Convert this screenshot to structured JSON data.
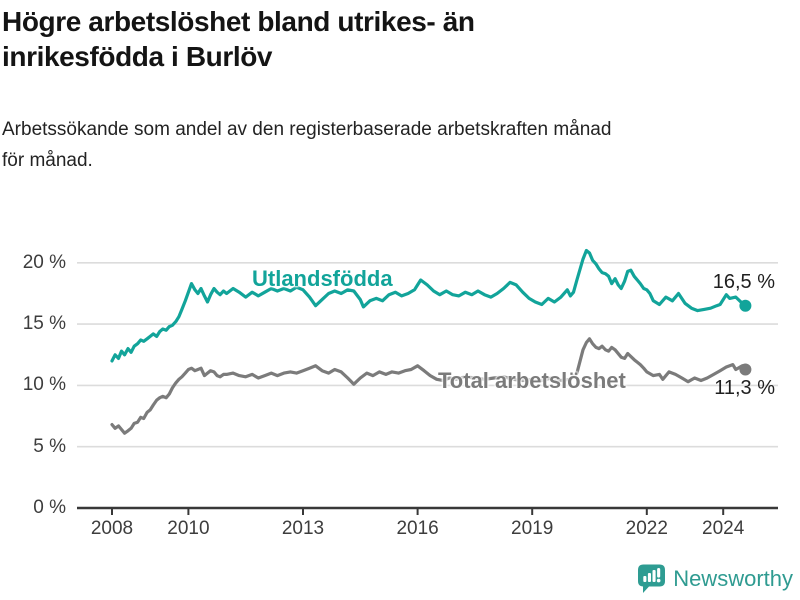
{
  "header": {
    "title_lines": [
      "Högre arbetslöshet bland utrikes- än",
      "inrikesfödda i Burlöv"
    ],
    "subtitle_lines": [
      "Arbetssökande som andel av den registerbaserade arbetskraften månad",
      "för månad."
    ]
  },
  "footer": {
    "brand": "Newsworthy",
    "logo_icon": "bar-chart-speech-bubble-icon",
    "brand_color": "#2F9B91"
  },
  "chart_data": {
    "type": "line",
    "title": "Högre arbetslöshet bland utrikes- än inrikesfödda i Burlöv",
    "subtitle": "Arbetssökande som andel av den registerbaserade arbetskraften månad för månad.",
    "xlabel": "",
    "ylabel": "",
    "grid": true,
    "legend_position": "inline-labels",
    "style": {
      "grid_color": "#dcdcdc",
      "axis_color": "#383838",
      "tick_label_color": "#3d3d3d",
      "value_label_color": "#1f1f1f"
    },
    "x_axis": {
      "unit": "year",
      "ticks": [
        2008,
        2010,
        2013,
        2016,
        2019,
        2022,
        2024
      ]
    },
    "y_axis": {
      "ylim": [
        0,
        22
      ],
      "ticks": [
        {
          "value": 0,
          "label": "0 %"
        },
        {
          "value": 5,
          "label": "5 %"
        },
        {
          "value": 10,
          "label": "10 %"
        },
        {
          "value": 15,
          "label": "15 %"
        },
        {
          "value": 20,
          "label": "20 %"
        }
      ]
    },
    "series": [
      {
        "name": "Utlandsfödda",
        "color": "#12A49A",
        "end_label": "16,5 %",
        "end_value": 16.5,
        "points": [
          [
            2008.0,
            12.0
          ],
          [
            2008.08,
            12.5
          ],
          [
            2008.17,
            12.2
          ],
          [
            2008.25,
            12.8
          ],
          [
            2008.33,
            12.5
          ],
          [
            2008.42,
            13.0
          ],
          [
            2008.5,
            12.7
          ],
          [
            2008.58,
            13.2
          ],
          [
            2008.67,
            13.4
          ],
          [
            2008.75,
            13.7
          ],
          [
            2008.83,
            13.6
          ],
          [
            2008.92,
            13.8
          ],
          [
            2009.0,
            14.0
          ],
          [
            2009.08,
            14.2
          ],
          [
            2009.17,
            14.0
          ],
          [
            2009.25,
            14.4
          ],
          [
            2009.33,
            14.6
          ],
          [
            2009.42,
            14.5
          ],
          [
            2009.5,
            14.8
          ],
          [
            2009.58,
            14.9
          ],
          [
            2009.67,
            15.2
          ],
          [
            2009.75,
            15.6
          ],
          [
            2009.83,
            16.2
          ],
          [
            2009.92,
            16.9
          ],
          [
            2010.0,
            17.6
          ],
          [
            2010.08,
            18.3
          ],
          [
            2010.17,
            17.8
          ],
          [
            2010.25,
            17.5
          ],
          [
            2010.33,
            17.9
          ],
          [
            2010.42,
            17.3
          ],
          [
            2010.5,
            16.8
          ],
          [
            2010.58,
            17.4
          ],
          [
            2010.67,
            17.9
          ],
          [
            2010.75,
            17.6
          ],
          [
            2010.83,
            17.4
          ],
          [
            2010.92,
            17.7
          ],
          [
            2011.0,
            17.5
          ],
          [
            2011.17,
            17.9
          ],
          [
            2011.33,
            17.6
          ],
          [
            2011.5,
            17.2
          ],
          [
            2011.67,
            17.6
          ],
          [
            2011.83,
            17.3
          ],
          [
            2012.0,
            17.6
          ],
          [
            2012.17,
            17.9
          ],
          [
            2012.33,
            17.7
          ],
          [
            2012.5,
            17.9
          ],
          [
            2012.67,
            17.7
          ],
          [
            2012.83,
            18.0
          ],
          [
            2013.0,
            17.8
          ],
          [
            2013.17,
            17.2
          ],
          [
            2013.33,
            16.5
          ],
          [
            2013.5,
            17.0
          ],
          [
            2013.67,
            17.5
          ],
          [
            2013.83,
            17.7
          ],
          [
            2014.0,
            17.5
          ],
          [
            2014.17,
            17.8
          ],
          [
            2014.33,
            17.7
          ],
          [
            2014.5,
            17.0
          ],
          [
            2014.58,
            16.4
          ],
          [
            2014.75,
            16.9
          ],
          [
            2014.92,
            17.1
          ],
          [
            2015.08,
            16.9
          ],
          [
            2015.25,
            17.4
          ],
          [
            2015.42,
            17.6
          ],
          [
            2015.58,
            17.3
          ],
          [
            2015.75,
            17.5
          ],
          [
            2015.92,
            17.8
          ],
          [
            2016.0,
            18.2
          ],
          [
            2016.08,
            18.6
          ],
          [
            2016.25,
            18.2
          ],
          [
            2016.42,
            17.7
          ],
          [
            2016.58,
            17.4
          ],
          [
            2016.75,
            17.7
          ],
          [
            2016.92,
            17.4
          ],
          [
            2017.08,
            17.3
          ],
          [
            2017.25,
            17.6
          ],
          [
            2017.42,
            17.4
          ],
          [
            2017.58,
            17.7
          ],
          [
            2017.75,
            17.4
          ],
          [
            2017.92,
            17.2
          ],
          [
            2018.08,
            17.5
          ],
          [
            2018.25,
            17.9
          ],
          [
            2018.42,
            18.4
          ],
          [
            2018.58,
            18.2
          ],
          [
            2018.75,
            17.6
          ],
          [
            2018.92,
            17.1
          ],
          [
            2019.08,
            16.8
          ],
          [
            2019.25,
            16.6
          ],
          [
            2019.42,
            17.1
          ],
          [
            2019.58,
            16.8
          ],
          [
            2019.75,
            17.2
          ],
          [
            2019.92,
            17.8
          ],
          [
            2020.0,
            17.3
          ],
          [
            2020.08,
            17.6
          ],
          [
            2020.17,
            18.6
          ],
          [
            2020.33,
            20.3
          ],
          [
            2020.42,
            21.0
          ],
          [
            2020.5,
            20.8
          ],
          [
            2020.58,
            20.2
          ],
          [
            2020.67,
            19.9
          ],
          [
            2020.75,
            19.5
          ],
          [
            2020.83,
            19.2
          ],
          [
            2020.92,
            19.1
          ],
          [
            2021.0,
            18.9
          ],
          [
            2021.08,
            18.3
          ],
          [
            2021.17,
            18.7
          ],
          [
            2021.25,
            18.2
          ],
          [
            2021.33,
            17.9
          ],
          [
            2021.42,
            18.5
          ],
          [
            2021.5,
            19.3
          ],
          [
            2021.58,
            19.4
          ],
          [
            2021.67,
            18.9
          ],
          [
            2021.75,
            18.6
          ],
          [
            2021.83,
            18.3
          ],
          [
            2021.92,
            17.9
          ],
          [
            2022.0,
            17.8
          ],
          [
            2022.08,
            17.5
          ],
          [
            2022.17,
            16.9
          ],
          [
            2022.33,
            16.6
          ],
          [
            2022.5,
            17.2
          ],
          [
            2022.67,
            16.9
          ],
          [
            2022.83,
            17.5
          ],
          [
            2023.0,
            16.7
          ],
          [
            2023.17,
            16.3
          ],
          [
            2023.33,
            16.1
          ],
          [
            2023.5,
            16.2
          ],
          [
            2023.67,
            16.3
          ],
          [
            2023.83,
            16.5
          ],
          [
            2023.92,
            16.6
          ],
          [
            2024.08,
            17.4
          ],
          [
            2024.17,
            17.1
          ],
          [
            2024.33,
            17.2
          ],
          [
            2024.5,
            16.7
          ],
          [
            2024.58,
            16.5
          ]
        ]
      },
      {
        "name": "Total arbetslöshet",
        "color": "#7B7B7B",
        "end_label": "11,3 %",
        "end_value": 11.3,
        "points": [
          [
            2008.0,
            6.8
          ],
          [
            2008.08,
            6.5
          ],
          [
            2008.17,
            6.7
          ],
          [
            2008.25,
            6.4
          ],
          [
            2008.33,
            6.1
          ],
          [
            2008.42,
            6.3
          ],
          [
            2008.5,
            6.5
          ],
          [
            2008.58,
            6.9
          ],
          [
            2008.67,
            7.0
          ],
          [
            2008.75,
            7.4
          ],
          [
            2008.83,
            7.3
          ],
          [
            2008.92,
            7.8
          ],
          [
            2009.0,
            8.0
          ],
          [
            2009.08,
            8.4
          ],
          [
            2009.17,
            8.8
          ],
          [
            2009.25,
            9.0
          ],
          [
            2009.33,
            9.1
          ],
          [
            2009.42,
            9.0
          ],
          [
            2009.5,
            9.3
          ],
          [
            2009.58,
            9.8
          ],
          [
            2009.67,
            10.2
          ],
          [
            2009.75,
            10.5
          ],
          [
            2009.83,
            10.7
          ],
          [
            2009.92,
            11.0
          ],
          [
            2010.0,
            11.3
          ],
          [
            2010.08,
            11.4
          ],
          [
            2010.17,
            11.2
          ],
          [
            2010.25,
            11.3
          ],
          [
            2010.33,
            11.4
          ],
          [
            2010.42,
            10.8
          ],
          [
            2010.5,
            11.0
          ],
          [
            2010.58,
            11.2
          ],
          [
            2010.67,
            11.1
          ],
          [
            2010.75,
            10.8
          ],
          [
            2010.83,
            10.7
          ],
          [
            2010.92,
            10.9
          ],
          [
            2011.0,
            10.9
          ],
          [
            2011.17,
            11.0
          ],
          [
            2011.33,
            10.8
          ],
          [
            2011.5,
            10.7
          ],
          [
            2011.67,
            10.9
          ],
          [
            2011.83,
            10.6
          ],
          [
            2012.0,
            10.8
          ],
          [
            2012.17,
            11.0
          ],
          [
            2012.33,
            10.8
          ],
          [
            2012.5,
            11.0
          ],
          [
            2012.67,
            11.1
          ],
          [
            2012.83,
            11.0
          ],
          [
            2013.0,
            11.2
          ],
          [
            2013.17,
            11.4
          ],
          [
            2013.33,
            11.6
          ],
          [
            2013.5,
            11.2
          ],
          [
            2013.67,
            11.0
          ],
          [
            2013.83,
            11.3
          ],
          [
            2014.0,
            11.1
          ],
          [
            2014.17,
            10.6
          ],
          [
            2014.33,
            10.1
          ],
          [
            2014.5,
            10.6
          ],
          [
            2014.67,
            11.0
          ],
          [
            2014.83,
            10.8
          ],
          [
            2015.0,
            11.1
          ],
          [
            2015.17,
            10.9
          ],
          [
            2015.33,
            11.1
          ],
          [
            2015.5,
            11.0
          ],
          [
            2015.67,
            11.2
          ],
          [
            2015.83,
            11.3
          ],
          [
            2016.0,
            11.6
          ],
          [
            2016.17,
            11.2
          ],
          [
            2016.33,
            10.8
          ],
          [
            2016.5,
            10.5
          ],
          [
            2016.67,
            10.4
          ],
          [
            2016.83,
            10.6
          ],
          [
            2017.0,
            10.5
          ],
          [
            2017.25,
            10.7
          ],
          [
            2017.5,
            10.6
          ],
          [
            2017.75,
            10.5
          ],
          [
            2018.0,
            10.6
          ],
          [
            2018.25,
            10.7
          ],
          [
            2018.5,
            10.5
          ],
          [
            2018.75,
            10.4
          ],
          [
            2019.0,
            10.5
          ],
          [
            2019.25,
            10.4
          ],
          [
            2019.5,
            10.6
          ],
          [
            2019.75,
            10.4
          ],
          [
            2020.0,
            10.5
          ],
          [
            2020.17,
            11.0
          ],
          [
            2020.33,
            12.9
          ],
          [
            2020.42,
            13.5
          ],
          [
            2020.5,
            13.8
          ],
          [
            2020.58,
            13.4
          ],
          [
            2020.67,
            13.1
          ],
          [
            2020.75,
            13.0
          ],
          [
            2020.83,
            13.2
          ],
          [
            2020.92,
            12.9
          ],
          [
            2021.0,
            12.8
          ],
          [
            2021.08,
            13.1
          ],
          [
            2021.17,
            12.9
          ],
          [
            2021.33,
            12.3
          ],
          [
            2021.42,
            12.2
          ],
          [
            2021.5,
            12.6
          ],
          [
            2021.67,
            12.1
          ],
          [
            2021.83,
            11.7
          ],
          [
            2021.92,
            11.4
          ],
          [
            2022.0,
            11.1
          ],
          [
            2022.17,
            10.8
          ],
          [
            2022.33,
            10.9
          ],
          [
            2022.42,
            10.5
          ],
          [
            2022.58,
            11.1
          ],
          [
            2022.75,
            10.9
          ],
          [
            2022.92,
            10.6
          ],
          [
            2023.08,
            10.3
          ],
          [
            2023.25,
            10.6
          ],
          [
            2023.42,
            10.4
          ],
          [
            2023.58,
            10.6
          ],
          [
            2023.75,
            10.9
          ],
          [
            2023.92,
            11.2
          ],
          [
            2024.08,
            11.5
          ],
          [
            2024.25,
            11.7
          ],
          [
            2024.33,
            11.3
          ],
          [
            2024.5,
            11.6
          ],
          [
            2024.58,
            11.3
          ]
        ]
      }
    ]
  }
}
